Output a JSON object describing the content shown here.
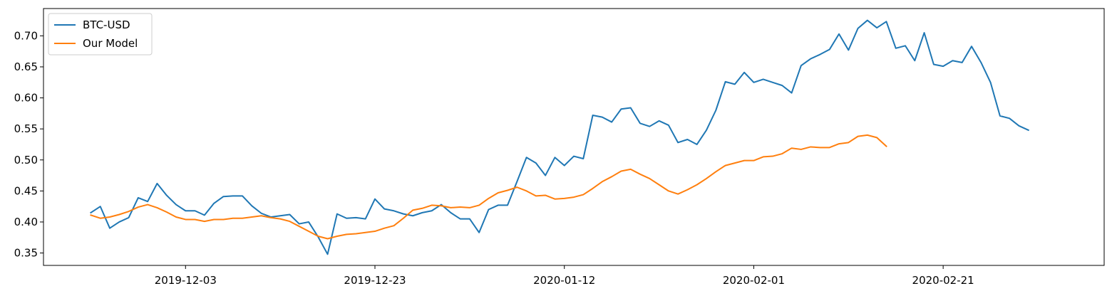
{
  "chart_data": {
    "type": "line",
    "title": "",
    "xlabel": "",
    "ylabel": "",
    "x_start": "2019-11-23",
    "x_ticks": [
      "2019-12-03",
      "2019-12-23",
      "2020-01-12",
      "2020-02-01",
      "2020-02-21"
    ],
    "xlim": [
      "2019-11-18",
      "2020-03-09"
    ],
    "y_ticks": [
      0.35,
      0.4,
      0.45,
      0.5,
      0.55,
      0.6,
      0.65,
      0.7
    ],
    "ylim": [
      0.33,
      0.744
    ],
    "grid": false,
    "legend_position": "top-left",
    "series": [
      {
        "name": "BTC-USD",
        "color": "#1f77b4",
        "values": [
          0.415,
          0.425,
          0.39,
          0.4,
          0.407,
          0.439,
          0.433,
          0.462,
          0.443,
          0.428,
          0.418,
          0.418,
          0.411,
          0.43,
          0.441,
          0.442,
          0.442,
          0.426,
          0.414,
          0.408,
          0.41,
          0.412,
          0.397,
          0.4,
          0.376,
          0.348,
          0.413,
          0.406,
          0.407,
          0.405,
          0.437,
          0.421,
          0.418,
          0.413,
          0.41,
          0.415,
          0.418,
          0.428,
          0.415,
          0.405,
          0.405,
          0.383,
          0.42,
          0.427,
          0.427,
          0.465,
          0.504,
          0.495,
          0.475,
          0.504,
          0.491,
          0.506,
          0.502,
          0.572,
          0.569,
          0.561,
          0.582,
          0.584,
          0.559,
          0.554,
          0.563,
          0.556,
          0.528,
          0.533,
          0.525,
          0.548,
          0.58,
          0.626,
          0.622,
          0.641,
          0.625,
          0.63,
          0.625,
          0.62,
          0.608,
          0.652,
          0.663,
          0.67,
          0.678,
          0.703,
          0.677,
          0.712,
          0.725,
          0.713,
          0.723,
          0.68,
          0.684,
          0.66,
          0.705,
          0.654,
          0.651,
          0.66,
          0.657,
          0.683,
          0.657,
          0.625,
          0.571,
          0.567,
          0.555,
          0.548
        ]
      },
      {
        "name": "Our Model",
        "color": "#ff7f0e",
        "values": [
          0.411,
          0.406,
          0.408,
          0.412,
          0.417,
          0.424,
          0.428,
          0.423,
          0.416,
          0.408,
          0.404,
          0.404,
          0.401,
          0.404,
          0.404,
          0.406,
          0.406,
          0.408,
          0.41,
          0.407,
          0.405,
          0.401,
          0.393,
          0.385,
          0.377,
          0.373,
          0.377,
          0.38,
          0.381,
          0.383,
          0.385,
          0.39,
          0.394,
          0.406,
          0.419,
          0.422,
          0.427,
          0.426,
          0.423,
          0.424,
          0.423,
          0.427,
          0.438,
          0.447,
          0.451,
          0.456,
          0.45,
          0.442,
          0.443,
          0.437,
          0.438,
          0.44,
          0.444,
          0.454,
          0.465,
          0.473,
          0.482,
          0.485,
          0.477,
          0.47,
          0.46,
          0.45,
          0.445,
          0.452,
          0.46,
          0.47,
          0.481,
          0.491,
          0.495,
          0.499,
          0.499,
          0.505,
          0.506,
          0.51,
          0.519,
          0.517,
          0.521,
          0.52,
          0.52,
          0.526,
          0.528,
          0.538,
          0.54,
          0.536,
          0.522
        ]
      }
    ]
  }
}
